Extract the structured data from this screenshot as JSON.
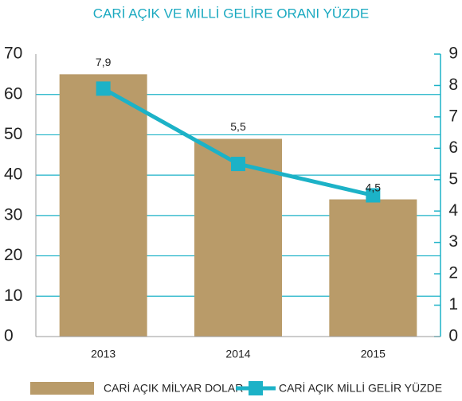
{
  "chart_data": {
    "type": "bar_line",
    "title": "CARİ AÇIK VE MİLLİ GELİRE ORANI YÜZDE",
    "categories": [
      "2013",
      "2014",
      "2015"
    ],
    "series": [
      {
        "name": "CARİ AÇIK MİLYAR DOLAR",
        "type": "bar",
        "color": "#b99b69",
        "values": [
          65,
          49,
          34
        ]
      },
      {
        "name": "CARİ AÇIK MİLLİ GELİR YÜZDE",
        "type": "line",
        "axis": "y2",
        "color": "#1cb2c7",
        "values": [
          7.9,
          5.5,
          4.5
        ],
        "value_labels": [
          "7,9",
          "5,5",
          "4,5"
        ]
      }
    ],
    "ylim": [
      0,
      70
    ],
    "yticks": [
      0,
      10,
      20,
      30,
      40,
      50,
      60,
      70
    ],
    "y2lim": [
      0,
      9
    ],
    "y2ticks": [
      0,
      1,
      2,
      3,
      4,
      5,
      6,
      7,
      8,
      9
    ],
    "grid": true,
    "legend": "bottom"
  }
}
